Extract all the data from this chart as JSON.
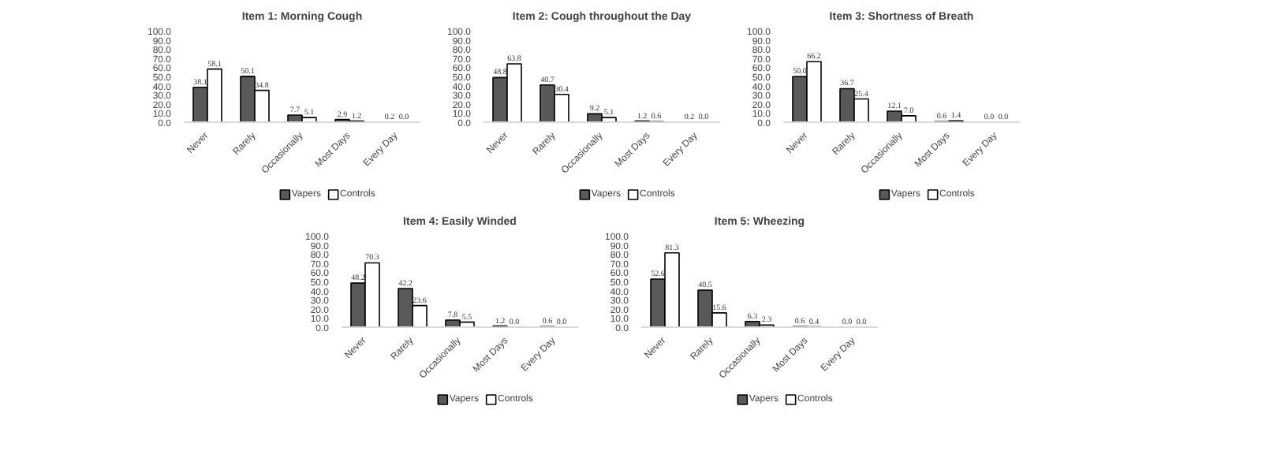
{
  "chart_data": [
    {
      "type": "bar",
      "title": "Item 1: Morning Cough",
      "categories": [
        "Never",
        "Rarely",
        "Occasionally",
        "Most Days",
        "Every Day"
      ],
      "series": [
        {
          "name": "Vapers",
          "color": "#595959",
          "values": [
            38.1,
            50.1,
            7.7,
            2.9,
            0.2
          ],
          "value_labels": [
            "38.1",
            "50.1",
            "7.7",
            "2.9",
            "0.2"
          ]
        },
        {
          "name": "Controls",
          "color": "#ffffff",
          "values": [
            58.1,
            34.8,
            5.1,
            1.2,
            0.0
          ],
          "value_labels": [
            "58.1",
            "34.8",
            "5.1",
            "1.2",
            "0.0"
          ]
        }
      ],
      "ylim": [
        0,
        100
      ],
      "yticks": [
        {
          "value": 0,
          "label": "0.0"
        },
        {
          "value": 10,
          "label": "10.0"
        },
        {
          "value": 20,
          "label": "20.0"
        },
        {
          "value": 30,
          "label": "30.0"
        },
        {
          "value": 40,
          "label": "40.0"
        },
        {
          "value": 50,
          "label": "50.0"
        },
        {
          "value": 60,
          "label": "60.0"
        },
        {
          "value": 70,
          "label": "70.0"
        },
        {
          "value": 80,
          "label": "80.0"
        },
        {
          "value": 90,
          "label": "90.0"
        },
        {
          "value": 100,
          "label": "100.0"
        }
      ],
      "data_labels": true,
      "legend": "bottom",
      "grid": false
    },
    {
      "type": "bar",
      "title": "Item 2: Cough throughout the Day",
      "categories": [
        "Never",
        "Rarely",
        "Occasionally",
        "Most Days",
        "Every Day"
      ],
      "series": [
        {
          "name": "Vapers",
          "color": "#595959",
          "values": [
            48.8,
            40.7,
            9.2,
            1.2,
            0.2
          ],
          "value_labels": [
            "48.8",
            "40.7",
            "9.2",
            "1.2",
            "0.2"
          ]
        },
        {
          "name": "Controls",
          "color": "#ffffff",
          "values": [
            63.8,
            30.4,
            5.1,
            0.6,
            0.0
          ],
          "value_labels": [
            "63.8",
            "30.4",
            "5.1",
            "0.6",
            "0.0"
          ]
        }
      ],
      "ylim": [
        0,
        100
      ],
      "yticks": [
        {
          "value": 0,
          "label": "0.0"
        },
        {
          "value": 10,
          "label": "10.0"
        },
        {
          "value": 20,
          "label": "20.0"
        },
        {
          "value": 30,
          "label": "30.0"
        },
        {
          "value": 40,
          "label": "40.0"
        },
        {
          "value": 50,
          "label": "50.0"
        },
        {
          "value": 60,
          "label": "60.0"
        },
        {
          "value": 70,
          "label": "70.0"
        },
        {
          "value": 80,
          "label": "80.0"
        },
        {
          "value": 90,
          "label": "90.0"
        },
        {
          "value": 100,
          "label": "100.0"
        }
      ],
      "data_labels": true,
      "legend": "bottom",
      "grid": false
    },
    {
      "type": "bar",
      "title": "Item 3: Shortness of Breath",
      "categories": [
        "Never",
        "Rarely",
        "Occasionally",
        "Most Days",
        "Every Day"
      ],
      "series": [
        {
          "name": "Vapers",
          "color": "#595959",
          "values": [
            50.0,
            36.7,
            12.1,
            0.6,
            0.0
          ],
          "value_labels": [
            "50.0",
            "36.7",
            "12.1",
            "0.6",
            "0.0"
          ]
        },
        {
          "name": "Controls",
          "color": "#ffffff",
          "values": [
            66.2,
            25.4,
            7.0,
            1.4,
            0.0
          ],
          "value_labels": [
            "66.2",
            "25.4",
            "7.0",
            "1.4",
            "0.0"
          ]
        }
      ],
      "ylim": [
        0,
        100
      ],
      "yticks": [
        {
          "value": 0,
          "label": "0.0"
        },
        {
          "value": 10,
          "label": "10.0"
        },
        {
          "value": 20,
          "label": "20.0"
        },
        {
          "value": 30,
          "label": "30.0"
        },
        {
          "value": 40,
          "label": "40.0"
        },
        {
          "value": 50,
          "label": "50.0"
        },
        {
          "value": 60,
          "label": "60.0"
        },
        {
          "value": 70,
          "label": "70.0"
        },
        {
          "value": 80,
          "label": "80.0"
        },
        {
          "value": 90,
          "label": "90.0"
        },
        {
          "value": 100,
          "label": "100.0"
        }
      ],
      "data_labels": true,
      "legend": "bottom",
      "grid": false
    },
    {
      "type": "bar",
      "title": "Item 4: Easily Winded",
      "categories": [
        "Never",
        "Rarely",
        "Occasionally",
        "Most Days",
        "Every Day"
      ],
      "series": [
        {
          "name": "Vapers",
          "color": "#595959",
          "values": [
            48.2,
            42.2,
            7.8,
            1.2,
            0.6
          ],
          "value_labels": [
            "48.2",
            "42.2",
            "7.8",
            "1.2",
            "0.6"
          ]
        },
        {
          "name": "Controls",
          "color": "#ffffff",
          "values": [
            70.3,
            23.6,
            5.5,
            0.0,
            0.0
          ],
          "value_labels": [
            "70.3",
            "23.6",
            "5.5",
            "0.0",
            "0.0"
          ]
        }
      ],
      "ylim": [
        0,
        100
      ],
      "yticks": [
        {
          "value": 0,
          "label": "0.0"
        },
        {
          "value": 10,
          "label": "10.0"
        },
        {
          "value": 20,
          "label": "20.0"
        },
        {
          "value": 30,
          "label": "30.0"
        },
        {
          "value": 40,
          "label": "40.0"
        },
        {
          "value": 50,
          "label": "50.0"
        },
        {
          "value": 60,
          "label": "60.0"
        },
        {
          "value": 70,
          "label": "70.0"
        },
        {
          "value": 80,
          "label": "80.0"
        },
        {
          "value": 90,
          "label": "90.0"
        },
        {
          "value": 100,
          "label": "100.0"
        }
      ],
      "data_labels": true,
      "legend": "bottom",
      "grid": false
    },
    {
      "type": "bar",
      "title": "Item 5: Wheezing",
      "categories": [
        "Never",
        "Rarely",
        "Occasionally",
        "Most Days",
        "Every Day"
      ],
      "series": [
        {
          "name": "Vapers",
          "color": "#595959",
          "values": [
            52.6,
            40.5,
            6.3,
            0.6,
            0.0
          ],
          "value_labels": [
            "52.6",
            "40.5",
            "6.3",
            "0.6",
            "0.0"
          ]
        },
        {
          "name": "Controls",
          "color": "#ffffff",
          "values": [
            81.3,
            15.6,
            2.3,
            0.4,
            0.0
          ],
          "value_labels": [
            "81.3",
            "15.6",
            "2.3",
            "0.4",
            "0.0"
          ]
        }
      ],
      "ylim": [
        0,
        100
      ],
      "yticks": [
        {
          "value": 0,
          "label": "0.0"
        },
        {
          "value": 10,
          "label": "10.0"
        },
        {
          "value": 20,
          "label": "20.0"
        },
        {
          "value": 30,
          "label": "30.0"
        },
        {
          "value": 40,
          "label": "40.0"
        },
        {
          "value": 50,
          "label": "50.0"
        },
        {
          "value": 60,
          "label": "60.0"
        },
        {
          "value": 70,
          "label": "70.0"
        },
        {
          "value": 80,
          "label": "80.0"
        },
        {
          "value": 90,
          "label": "90.0"
        },
        {
          "value": 100,
          "label": "100.0"
        }
      ],
      "data_labels": true,
      "legend": "bottom",
      "grid": false
    }
  ]
}
